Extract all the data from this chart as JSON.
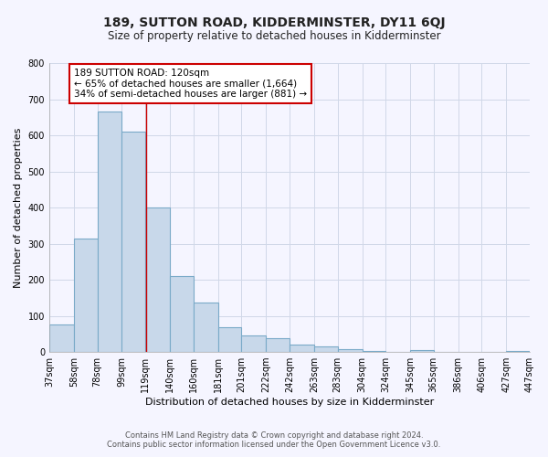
{
  "title": "189, SUTTON ROAD, KIDDERMINSTER, DY11 6QJ",
  "subtitle": "Size of property relative to detached houses in Kidderminster",
  "xlabel": "Distribution of detached houses by size in Kidderminster",
  "ylabel": "Number of detached properties",
  "bar_left_edges": [
    37,
    58,
    78,
    99,
    119,
    140,
    160,
    181,
    201,
    222,
    242,
    263,
    283,
    304,
    324,
    345,
    365,
    386,
    406,
    427
  ],
  "bar_heights": [
    75,
    315,
    665,
    610,
    400,
    210,
    137,
    68,
    47,
    37,
    20,
    15,
    7,
    2,
    1,
    5,
    0,
    0,
    0,
    3
  ],
  "bar_widths": [
    21,
    20,
    21,
    20,
    21,
    20,
    21,
    20,
    21,
    20,
    21,
    20,
    21,
    20,
    21,
    20,
    21,
    20,
    21,
    20
  ],
  "bar_color": "#c8d8ea",
  "bar_edgecolor": "#7aaac8",
  "property_line_x": 120,
  "property_line_color": "#cc0000",
  "ylim": [
    0,
    800
  ],
  "yticks": [
    0,
    100,
    200,
    300,
    400,
    500,
    600,
    700,
    800
  ],
  "xlim": [
    37,
    447
  ],
  "xtick_labels": [
    "37sqm",
    "58sqm",
    "78sqm",
    "99sqm",
    "119sqm",
    "140sqm",
    "160sqm",
    "181sqm",
    "201sqm",
    "222sqm",
    "242sqm",
    "263sqm",
    "283sqm",
    "304sqm",
    "324sqm",
    "345sqm",
    "365sqm",
    "386sqm",
    "406sqm",
    "427sqm",
    "447sqm"
  ],
  "xtick_positions": [
    37,
    58,
    78,
    99,
    119,
    140,
    160,
    181,
    201,
    222,
    242,
    263,
    283,
    304,
    324,
    345,
    365,
    386,
    406,
    427,
    447
  ],
  "annotation_line1": "189 SUTTON ROAD: 120sqm",
  "annotation_line2": "← 65% of detached houses are smaller (1,664)",
  "annotation_line3": "34% of semi-detached houses are larger (881) →",
  "footer_line1": "Contains HM Land Registry data © Crown copyright and database right 2024.",
  "footer_line2": "Contains public sector information licensed under the Open Government Licence v3.0.",
  "grid_color": "#d0d8e8",
  "background_color": "#f5f5ff",
  "title_fontsize": 10,
  "subtitle_fontsize": 8.5,
  "axis_label_fontsize": 8,
  "tick_fontsize": 7,
  "annotation_fontsize": 7.5,
  "footer_fontsize": 6
}
